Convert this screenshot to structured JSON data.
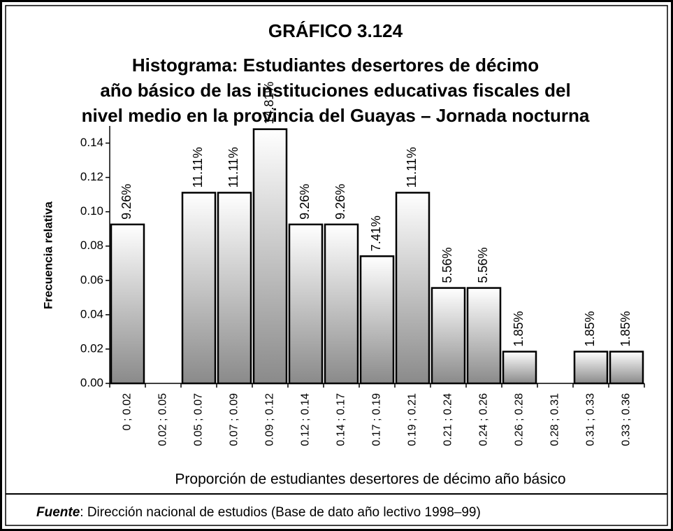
{
  "chart_data": {
    "type": "bar",
    "title": "GRÁFICO 3.124",
    "subtitle": [
      "Histograma: Estudiantes desertores de décimo",
      "año básico de  las instituciones educativas fiscales del",
      "nivel medio en la provincia del Guayas – Jornada nocturna"
    ],
    "x_label": "Proporción de estudiantes desertores de décimo año básico",
    "y_label": "Frecuencia  relativa",
    "categories": [
      "0 ; 0.02",
      "0.02 ; 0.05",
      "0.05 ; 0.07",
      "0.07 ; 0.09",
      "0.09 ; 0.12",
      "0.12 ; 0.14",
      "0.14 ; 0.17",
      "0.17 ; 0.19",
      "0.19 ; 0.21",
      "0.21 ; 0.24",
      "0.24 ; 0.26",
      "0.26 ; 0.28",
      "0.28 ; 0.31",
      "0.31 ; 0.33",
      "0.33 ; 0.36"
    ],
    "values": [
      0.0926,
      0,
      0.1111,
      0.1111,
      0.1481,
      0.0926,
      0.0926,
      0.0741,
      0.1111,
      0.0556,
      0.0556,
      0.0185,
      0,
      0.0185,
      0.0185
    ],
    "value_labels": [
      "9.26%",
      null,
      "11.11%",
      "11.11%",
      "14.81%",
      "9.26%",
      "9.26%",
      "7.41%",
      "11.11%",
      "5.56%",
      "5.56%",
      "1.85%",
      null,
      "1.85%",
      "1.85%"
    ],
    "ylim": [
      0,
      0.15
    ],
    "yticks": [
      {
        "value": 0,
        "label": "0.00"
      },
      0.02,
      0.04,
      0.06,
      0.08,
      {
        "value": 0.1,
        "label": "0.10"
      },
      0.12,
      0.14
    ],
    "grid": false,
    "source_label": "Fuente",
    "source": ": Dirección nacional de estudios (Base de dato año lectivo 1998–99)"
  }
}
